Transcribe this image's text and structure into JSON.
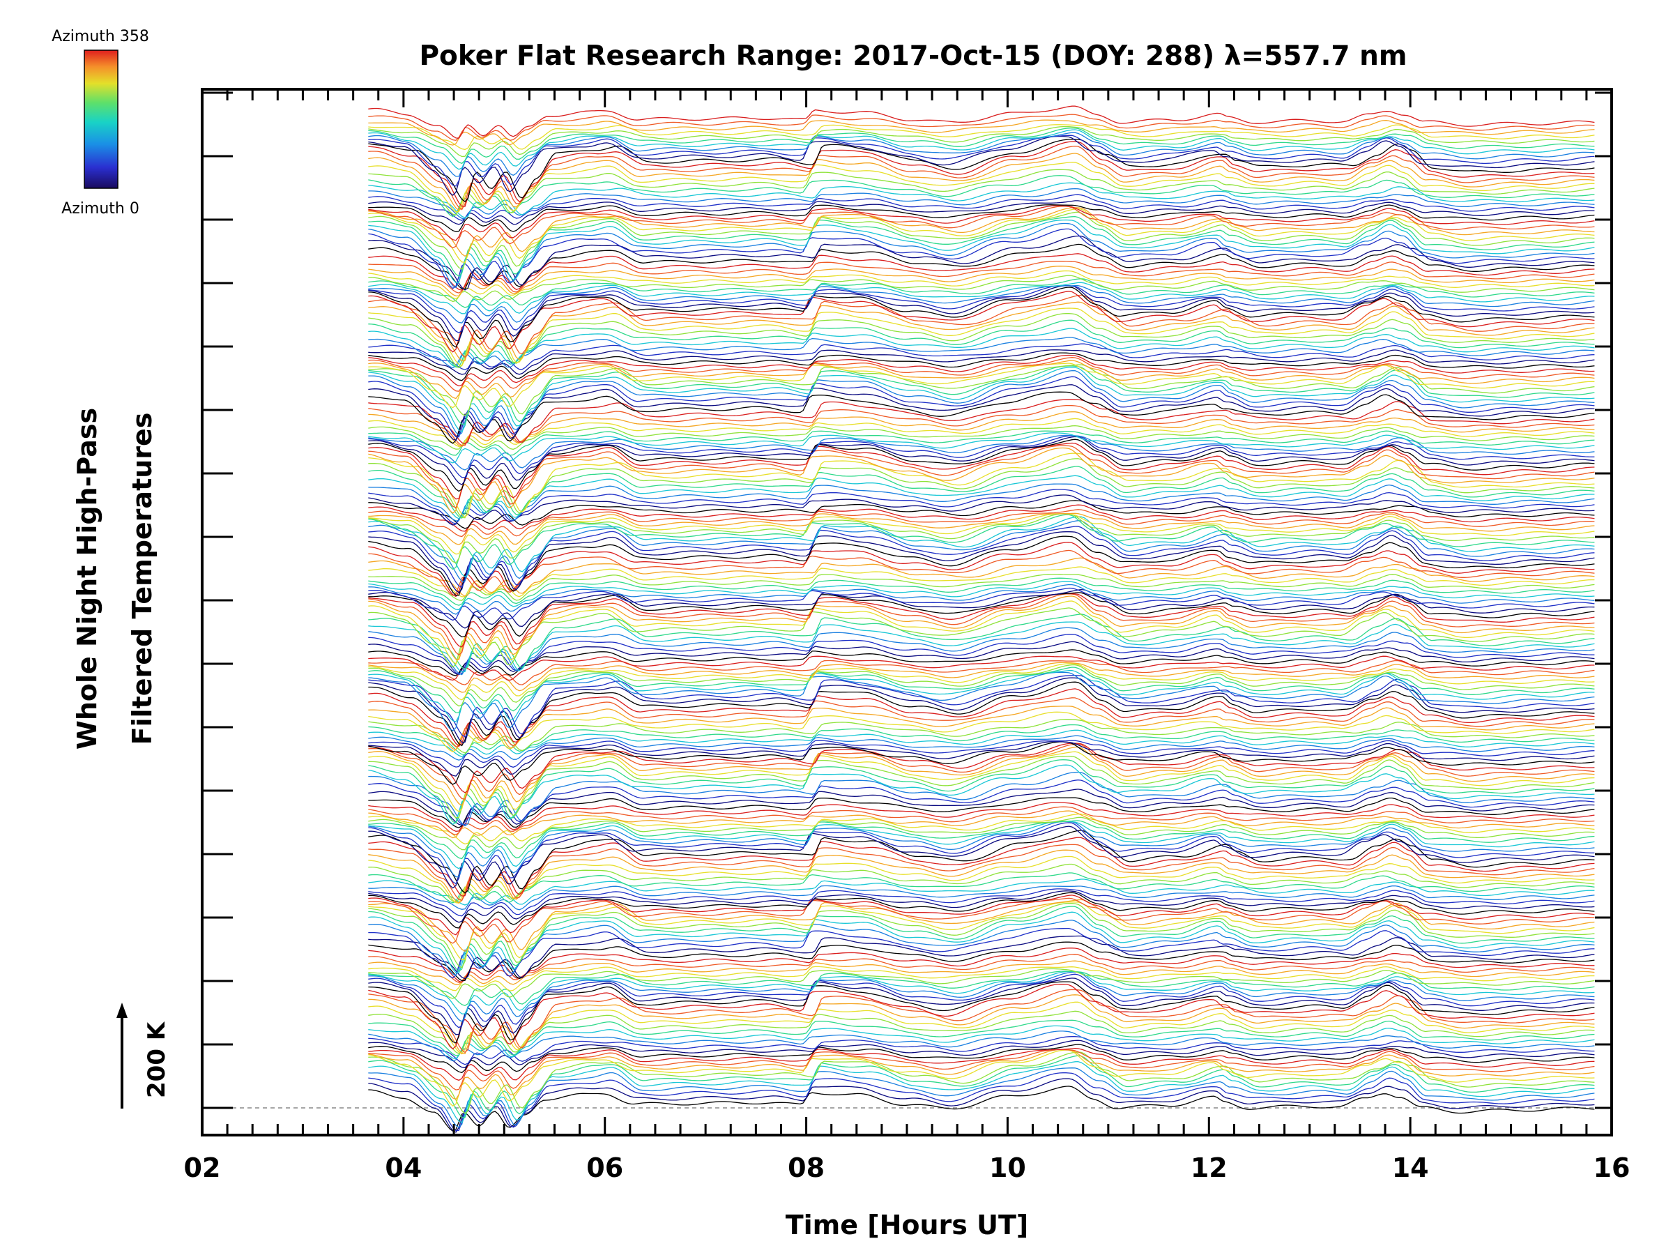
{
  "chart_data": {
    "type": "line",
    "title": "Poker Flat Research Range: 2017-Oct-15 (DOY: 288) λ=557.7 nm",
    "xlabel": "Time [Hours UT]",
    "ylabel_line1": "Whole Night High-Pass",
    "ylabel_line2": "Filtered Temperatures",
    "xlim": [
      2,
      16
    ],
    "x_ticks": [
      "02",
      "04",
      "06",
      "08",
      "10",
      "12",
      "14",
      "16"
    ],
    "x_tick_values": [
      2,
      4,
      6,
      8,
      10,
      12,
      14,
      16
    ],
    "y_scale_label": "200 K",
    "y_major_ticks": 17,
    "data_time_range": [
      3.65,
      15.85
    ],
    "series_count": 220,
    "colorbar": {
      "top_label": "Azimuth 358",
      "bottom_label": "Azimuth 0",
      "colormap": "rainbow (blue to red)",
      "azimuth_range": [
        0,
        358
      ]
    },
    "colors": {
      "azimuth_cycle": [
        "#000000",
        "#0a0a80",
        "#1f30c8",
        "#1a7fe0",
        "#19c7d6",
        "#2fd98a",
        "#8fe23a",
        "#e8df2a",
        "#f5a623",
        "#ef5a26",
        "#d91e1e"
      ]
    },
    "baseline": "dashed",
    "grid": false,
    "legend": "colorbar top-left",
    "feature_profile_hours": [
      3.65,
      4.0,
      4.3,
      4.5,
      4.6,
      4.75,
      4.9,
      5.05,
      5.2,
      5.4,
      5.8,
      6.0,
      6.3,
      7.0,
      7.6,
      7.95,
      8.05,
      8.5,
      9.0,
      9.4,
      10.0,
      10.6,
      10.85,
      11.1,
      11.6,
      12.05,
      12.15,
      12.4,
      13.0,
      13.3,
      13.55,
      13.75,
      13.9,
      14.1,
      14.5,
      15.2,
      15.85
    ],
    "feature_profile_kelvin": [
      90,
      60,
      -30,
      -130,
      -20,
      -90,
      -20,
      -115,
      -40,
      50,
      70,
      80,
      20,
      25,
      30,
      15,
      85,
      70,
      20,
      -5,
      60,
      110,
      50,
      0,
      15,
      55,
      30,
      0,
      10,
      5,
      50,
      85,
      60,
      0,
      -20,
      -10,
      0
    ]
  }
}
